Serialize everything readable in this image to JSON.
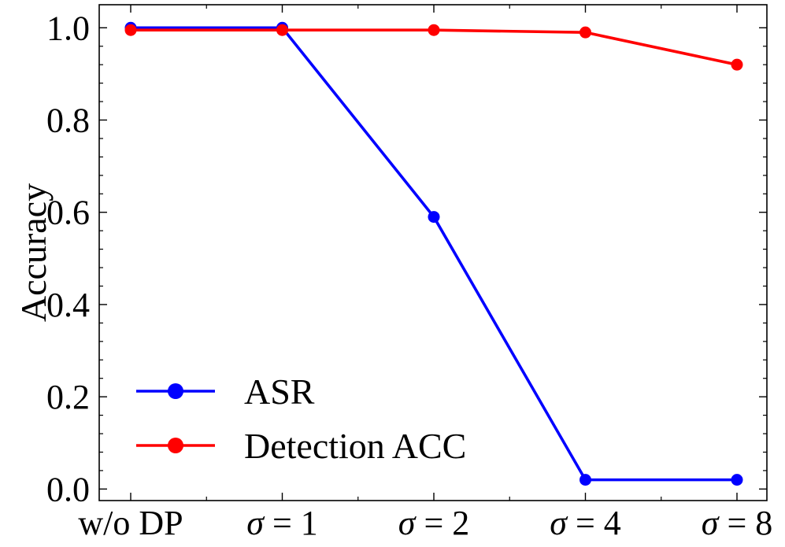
{
  "chart_data": {
    "type": "line",
    "categories": [
      "w/o DP",
      "σ = 1",
      "σ = 2",
      "σ = 4",
      "σ = 8"
    ],
    "series": [
      {
        "name": "ASR",
        "color": "#0000ff",
        "values": [
          1.0,
          1.0,
          0.59,
          0.02,
          0.02
        ]
      },
      {
        "name": "Detection ACC",
        "color": "#ff0000",
        "values": [
          0.995,
          0.995,
          0.995,
          0.99,
          0.92
        ]
      }
    ],
    "title": "",
    "xlabel": "",
    "ylabel": "Accuracy",
    "ylim": [
      -0.025,
      1.05
    ],
    "yticks": [
      "0.0",
      "0.2",
      "0.4",
      "0.6",
      "0.8",
      "1.0"
    ],
    "grid": false,
    "legend": "lower-left"
  }
}
